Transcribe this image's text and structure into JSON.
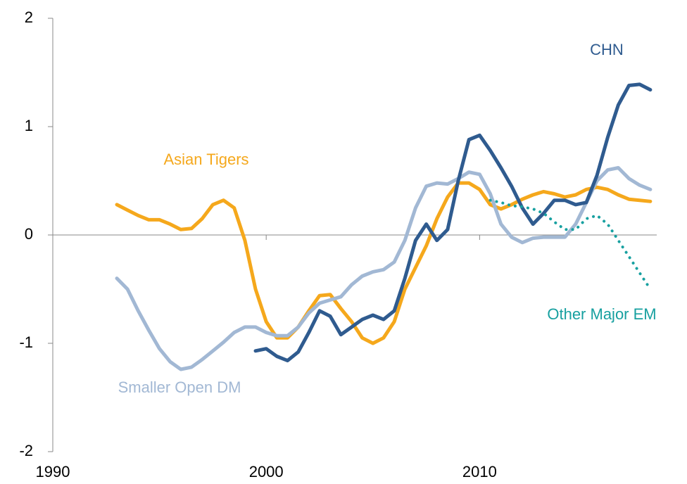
{
  "chart_data": {
    "type": "line",
    "x": [
      1993,
      1993.5,
      1994,
      1994.5,
      1995,
      1995.5,
      1996,
      1996.5,
      1997,
      1997.5,
      1998,
      1998.5,
      1999,
      1999.5,
      2000,
      2000.5,
      2001,
      2001.5,
      2002,
      2002.5,
      2003,
      2003.5,
      2004,
      2004.5,
      2005,
      2005.5,
      2006,
      2006.5,
      2007,
      2007.5,
      2008,
      2008.5,
      2009,
      2009.5,
      2010,
      2010.5,
      2011,
      2011.5,
      2012,
      2012.5,
      2013,
      2013.5,
      2014,
      2014.5,
      2015,
      2015.5,
      2016,
      2016.5,
      2017,
      2017.5,
      2018
    ],
    "series": [
      {
        "name": "Asian Tigers",
        "color": "#f5a81c",
        "dash": false,
        "values": [
          0.28,
          0.23,
          0.18,
          0.14,
          0.14,
          0.1,
          0.05,
          0.06,
          0.15,
          0.28,
          0.32,
          0.25,
          -0.05,
          -0.5,
          -0.8,
          -0.95,
          -0.95,
          -0.85,
          -0.7,
          -0.56,
          -0.55,
          -0.68,
          -0.8,
          -0.95,
          -1.0,
          -0.95,
          -0.8,
          -0.5,
          -0.3,
          -0.1,
          0.15,
          0.35,
          0.48,
          0.48,
          0.42,
          0.28,
          0.24,
          0.28,
          0.33,
          0.37,
          0.4,
          0.38,
          0.35,
          0.37,
          0.42,
          0.44,
          0.42,
          0.37,
          0.33,
          0.32,
          0.31
        ]
      },
      {
        "name": "Smaller Open DM",
        "color": "#a2b8d4",
        "dash": false,
        "values": [
          -0.4,
          -0.5,
          -0.7,
          -0.88,
          -1.05,
          -1.17,
          -1.24,
          -1.22,
          -1.15,
          -1.07,
          -0.99,
          -0.9,
          -0.85,
          -0.85,
          -0.9,
          -0.93,
          -0.93,
          -0.85,
          -0.72,
          -0.63,
          -0.6,
          -0.57,
          -0.46,
          -0.38,
          -0.34,
          -0.32,
          -0.25,
          -0.05,
          0.25,
          0.45,
          0.48,
          0.47,
          0.52,
          0.58,
          0.56,
          0.38,
          0.1,
          -0.02,
          -0.07,
          -0.03,
          -0.02,
          -0.02,
          -0.02,
          0.1,
          0.3,
          0.5,
          0.6,
          0.62,
          0.52,
          0.46,
          0.42
        ]
      },
      {
        "name": "CHN",
        "color": "#2f5b8f",
        "dash": false,
        "values": [
          null,
          null,
          null,
          null,
          null,
          null,
          null,
          null,
          null,
          null,
          null,
          null,
          null,
          -1.07,
          -1.05,
          -1.12,
          -1.16,
          -1.08,
          -0.9,
          -0.7,
          -0.75,
          -0.92,
          -0.85,
          -0.78,
          -0.74,
          -0.78,
          -0.7,
          -0.4,
          -0.05,
          0.1,
          -0.05,
          0.05,
          0.5,
          0.88,
          0.92,
          0.78,
          0.62,
          0.45,
          0.25,
          0.1,
          0.2,
          0.32,
          0.32,
          0.28,
          0.3,
          0.55,
          0.9,
          1.2,
          1.38,
          1.39,
          1.34
        ]
      },
      {
        "name": "Other Major EM",
        "color": "#17a0a0",
        "dash": true,
        "values": [
          null,
          null,
          null,
          null,
          null,
          null,
          null,
          null,
          null,
          null,
          null,
          null,
          null,
          null,
          null,
          null,
          null,
          null,
          null,
          null,
          null,
          null,
          null,
          null,
          null,
          null,
          null,
          null,
          null,
          null,
          null,
          null,
          null,
          null,
          null,
          0.32,
          0.3,
          0.27,
          0.26,
          0.24,
          0.2,
          0.12,
          0.05,
          0.05,
          0.15,
          0.18,
          0.1,
          -0.05,
          -0.2,
          -0.35,
          -0.5
        ]
      }
    ],
    "xlim": [
      1990,
      2018.3
    ],
    "xticks": [
      1990,
      2000,
      2010
    ],
    "ylim": [
      -2,
      2
    ],
    "yticks": [
      -2,
      -1,
      0,
      1,
      2
    ],
    "grid": false
  }
}
